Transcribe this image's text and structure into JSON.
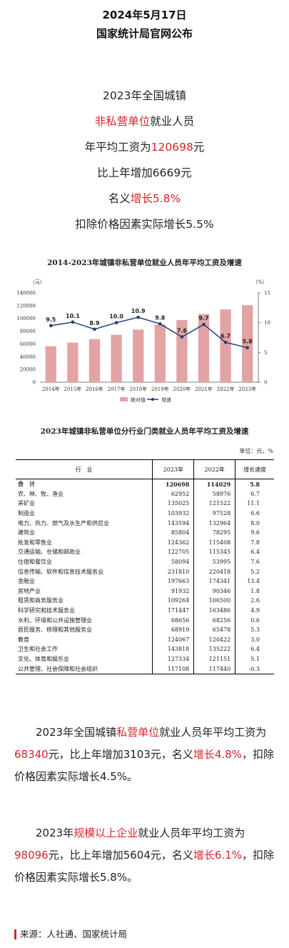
{
  "header": {
    "date": "2024年5月17日",
    "publisher": "国家统计局官网公布"
  },
  "summary": {
    "line1": "2023年全国城镇",
    "line2_red": "非私营单位",
    "line2_rest": "就业人员",
    "line3_pre": "年平均工资为",
    "line3_red": "120698",
    "line3_post": "元",
    "line4": "比上年增加6669元",
    "line5_pre": "名义",
    "line5_red": "增长5.8%",
    "line6": "扣除价格因素实际增长5.5%",
    "accent_color": "#d8232a"
  },
  "chart_data": [
    {
      "type": "bar",
      "title": "2014-2023年城镇非私营单位就业人员年平均工资及增速",
      "categories": [
        "2014年",
        "2015年",
        "2016年",
        "2017年",
        "2018年",
        "2019年",
        "2020年",
        "2021年",
        "2022年",
        "2023年"
      ],
      "y_unit_left": "（元）",
      "y_unit_right": "（%）",
      "ylim_left": [
        0,
        140000
      ],
      "yticks_left": [
        "0",
        "20000",
        "40000",
        "60000",
        "80000",
        "100000",
        "120000",
        "140000"
      ],
      "ylim_right": [
        0,
        15
      ],
      "yticks_right": [
        "0",
        "5",
        "10",
        "15"
      ],
      "series": [
        {
          "name": "绝对值",
          "type": "bar",
          "color": "#e3a3a5",
          "values": [
            56360,
            62029,
            67569,
            74318,
            82413,
            90501,
            97379,
            106837,
            114029,
            120698
          ]
        },
        {
          "name": "增速",
          "type": "line",
          "axis": "right",
          "color": "#1f3d7a",
          "values": [
            9.5,
            10.1,
            8.9,
            10.0,
            10.9,
            9.8,
            7.6,
            9.7,
            6.7,
            5.8
          ],
          "labels": [
            "9.5",
            "10.1",
            "8.9",
            "10.0",
            "10.9",
            "9.8",
            "7.6",
            "9.7",
            "6.7",
            "5.8"
          ]
        }
      ],
      "legend_position": "bottom"
    },
    {
      "type": "table",
      "title": "2023年城镇非私营单位分行业门类就业人员年平均工资及增速",
      "unit": "单位：元，%",
      "columns": [
        "行　业",
        "2023年",
        "2022年",
        "增长速度"
      ],
      "rows": [
        [
          "合　计",
          "120698",
          "114029",
          "5.8"
        ],
        [
          "农、林、牧、渔业",
          "62952",
          "58976",
          "6.7"
        ],
        [
          "采矿业",
          "135025",
          "121522",
          "11.1"
        ],
        [
          "制造业",
          "103932",
          "97528",
          "6.6"
        ],
        [
          "电力、热力、燃气及水生产和供应业",
          "143594",
          "132964",
          "8.0"
        ],
        [
          "建筑业",
          "85804",
          "78295",
          "9.6"
        ],
        [
          "批发和零售业",
          "124362",
          "115408",
          "7.8"
        ],
        [
          "交通运输、仓储和邮政业",
          "122705",
          "115345",
          "6.4"
        ],
        [
          "住宿和餐饮业",
          "58094",
          "53995",
          "7.6"
        ],
        [
          "信息传输、软件和信息技术服务业",
          "231810",
          "220418",
          "5.2"
        ],
        [
          "金融业",
          "197663",
          "174341",
          "13.4"
        ],
        [
          "房地产业",
          "91932",
          "90346",
          "1.8"
        ],
        [
          "租赁和商务服务业",
          "109264",
          "106500",
          "2.6"
        ],
        [
          "科学研究和技术服务业",
          "171447",
          "163486",
          "4.9"
        ],
        [
          "水利、环境和公共设施管理业",
          "68656",
          "68256",
          "0.6"
        ],
        [
          "居民服务、修理和其他服务业",
          "68919",
          "65478",
          "5.3"
        ],
        [
          "教育",
          "124067",
          "120422",
          "3.0"
        ],
        [
          "卫生和社会工作",
          "143818",
          "135222",
          "6.4"
        ],
        [
          "文化、体育和娱乐业",
          "127334",
          "121151",
          "5.1"
        ],
        [
          "公共管理、社会保障和社会组织",
          "117108",
          "117440",
          "-0.3"
        ]
      ]
    }
  ],
  "para1": {
    "a": "2023年全国城镇",
    "b_red": "私营单位",
    "c": "就业人员年平均工资为",
    "d_red": "68340",
    "e": "元，比上年增加3103元，名义",
    "f_red": "增长4.8%",
    "g": "，扣除价格因素实际增长4.5%。"
  },
  "para2": {
    "a": "2023年",
    "b_red": "规模以上企业",
    "c": "就业人员年平均工资为",
    "d_red": "98096",
    "e": "元，比上年增加5604元，名义",
    "f_red": "增长6.1%",
    "g": "，扣除价格因素实际增长5.8%。"
  },
  "source": "来源：人社通、国家统计局"
}
